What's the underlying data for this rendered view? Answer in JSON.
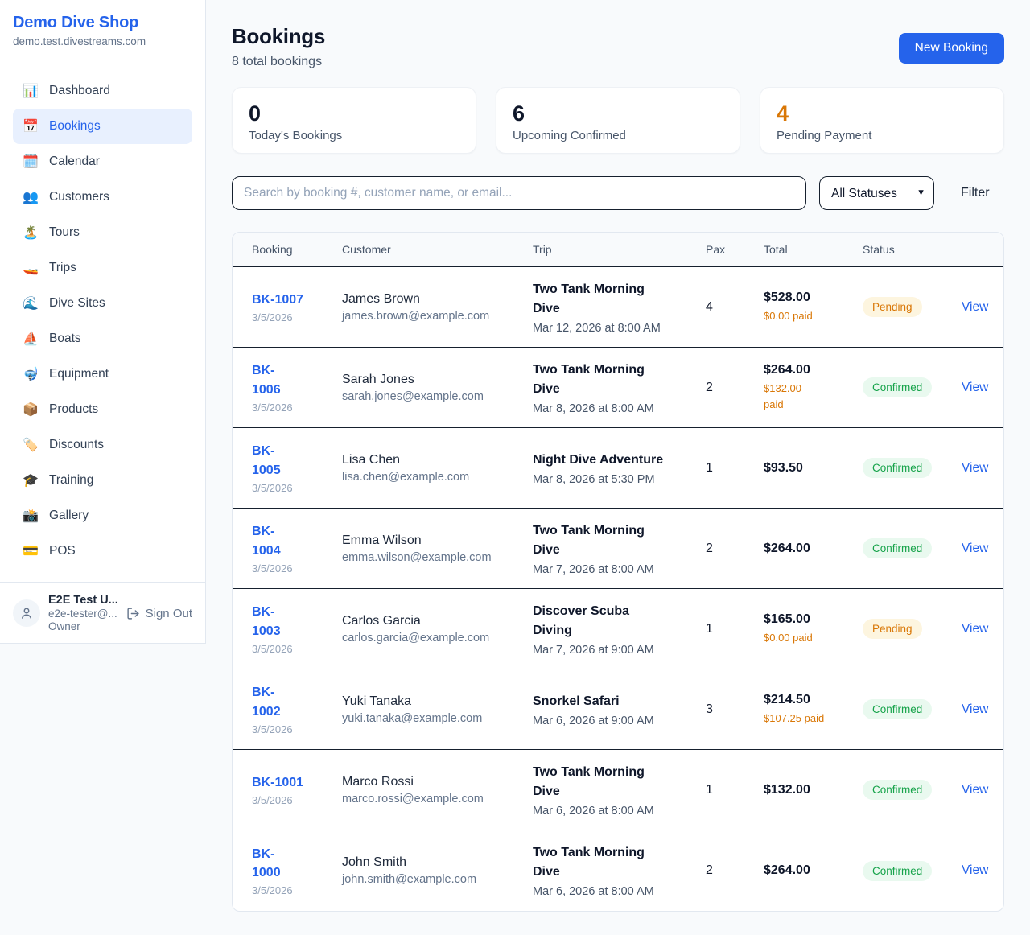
{
  "brand": {
    "name": "Demo Dive Shop",
    "domain": "demo.test.divestreams.com"
  },
  "sidebar": {
    "items": [
      {
        "id": "dashboard",
        "icon": "📊",
        "label": "Dashboard",
        "active": false
      },
      {
        "id": "bookings",
        "icon": "📅",
        "label": "Bookings",
        "active": true
      },
      {
        "id": "calendar",
        "icon": "🗓️",
        "label": "Calendar",
        "active": false
      },
      {
        "id": "customers",
        "icon": "👥",
        "label": "Customers",
        "active": false
      },
      {
        "id": "tours",
        "icon": "🏝️",
        "label": "Tours",
        "active": false
      },
      {
        "id": "trips",
        "icon": "🚤",
        "label": "Trips",
        "active": false
      },
      {
        "id": "dive-sites",
        "icon": "🌊",
        "label": "Dive Sites",
        "active": false
      },
      {
        "id": "boats",
        "icon": "⛵",
        "label": "Boats",
        "active": false
      },
      {
        "id": "equipment",
        "icon": "🤿",
        "label": "Equipment",
        "active": false
      },
      {
        "id": "products",
        "icon": "📦",
        "label": "Products",
        "active": false
      },
      {
        "id": "discounts",
        "icon": "🏷️",
        "label": "Discounts",
        "active": false
      },
      {
        "id": "training",
        "icon": "🎓",
        "label": "Training",
        "active": false
      },
      {
        "id": "gallery",
        "icon": "📸",
        "label": "Gallery",
        "active": false
      },
      {
        "id": "pos",
        "icon": "💳",
        "label": "POS",
        "active": false
      }
    ]
  },
  "user": {
    "name": "E2E Test U...",
    "email": "e2e-tester@...",
    "role": "Owner",
    "sign_out_label": "Sign Out"
  },
  "header": {
    "title": "Bookings",
    "subtitle": "8 total bookings",
    "new_booking_label": "New Booking"
  },
  "stats": [
    {
      "value": "0",
      "label": "Today's Bookings",
      "accent": "#0f172a"
    },
    {
      "value": "6",
      "label": "Upcoming Confirmed",
      "accent": "#0f172a"
    },
    {
      "value": "4",
      "label": "Pending Payment",
      "accent": "#d97706"
    }
  ],
  "filters": {
    "search_placeholder": "Search by booking #, customer name, or email...",
    "status_selected": "All Statuses",
    "filter_label": "Filter"
  },
  "table": {
    "columns": [
      "Booking",
      "Customer",
      "Trip",
      "Pax",
      "Total",
      "Status"
    ],
    "view_label": "View",
    "rows": [
      {
        "booking_number": "BK-1007",
        "booking_date": "3/5/2026",
        "customer_name": "James Brown",
        "customer_email": "james.brown@example.com",
        "trip_name": "Two Tank Morning\nDive",
        "trip_datetime": "Mar 12, 2026 at 8:00 AM",
        "pax": "4",
        "total": "$528.00",
        "paid": "$0.00 paid",
        "status": "Pending"
      },
      {
        "booking_number": "BK-\n1006",
        "booking_date": "3/5/2026",
        "customer_name": "Sarah Jones",
        "customer_email": "sarah.jones@example.com",
        "trip_name": "Two Tank Morning\nDive",
        "trip_datetime": "Mar 8, 2026 at 8:00 AM",
        "pax": "2",
        "total": "$264.00",
        "paid": "$132.00\npaid",
        "status": "Confirmed"
      },
      {
        "booking_number": "BK-\n1005",
        "booking_date": "3/5/2026",
        "customer_name": "Lisa Chen",
        "customer_email": "lisa.chen@example.com",
        "trip_name": "Night Dive Adventure",
        "trip_datetime": "Mar 8, 2026 at 5:30 PM",
        "pax": "1",
        "total": "$93.50",
        "paid": "",
        "status": "Confirmed"
      },
      {
        "booking_number": "BK-\n1004",
        "booking_date": "3/5/2026",
        "customer_name": "Emma Wilson",
        "customer_email": "emma.wilson@example.com",
        "trip_name": "Two Tank Morning\nDive",
        "trip_datetime": "Mar 7, 2026 at 8:00 AM",
        "pax": "2",
        "total": "$264.00",
        "paid": "",
        "status": "Confirmed"
      },
      {
        "booking_number": "BK-\n1003",
        "booking_date": "3/5/2026",
        "customer_name": "Carlos Garcia",
        "customer_email": "carlos.garcia@example.com",
        "trip_name": "Discover Scuba\nDiving",
        "trip_datetime": "Mar 7, 2026 at 9:00 AM",
        "pax": "1",
        "total": "$165.00",
        "paid": "$0.00 paid",
        "status": "Pending"
      },
      {
        "booking_number": "BK-\n1002",
        "booking_date": "3/5/2026",
        "customer_name": "Yuki Tanaka",
        "customer_email": "yuki.tanaka@example.com",
        "trip_name": "Snorkel Safari",
        "trip_datetime": "Mar 6, 2026 at 9:00 AM",
        "pax": "3",
        "total": "$214.50",
        "paid": "$107.25 paid",
        "status": "Confirmed"
      },
      {
        "booking_number": "BK-1001",
        "booking_date": "3/5/2026",
        "customer_name": "Marco Rossi",
        "customer_email": "marco.rossi@example.com",
        "trip_name": "Two Tank Morning\nDive",
        "trip_datetime": "Mar 6, 2026 at 8:00 AM",
        "pax": "1",
        "total": "$132.00",
        "paid": "",
        "status": "Confirmed"
      },
      {
        "booking_number": "BK-\n1000",
        "booking_date": "3/5/2026",
        "customer_name": "John Smith",
        "customer_email": "john.smith@example.com",
        "trip_name": "Two Tank Morning\nDive",
        "trip_datetime": "Mar 6, 2026 at 8:00 AM",
        "pax": "2",
        "total": "$264.00",
        "paid": "",
        "status": "Confirmed"
      }
    ]
  },
  "colors": {
    "accent_blue": "#2563eb",
    "pending_text": "#d97706",
    "pending_bg": "#fdf5df",
    "confirmed_text": "#16a34a",
    "confirmed_bg": "#e9f9ef",
    "paid_orange": "#d97706",
    "page_bg": "#f8fafc"
  }
}
